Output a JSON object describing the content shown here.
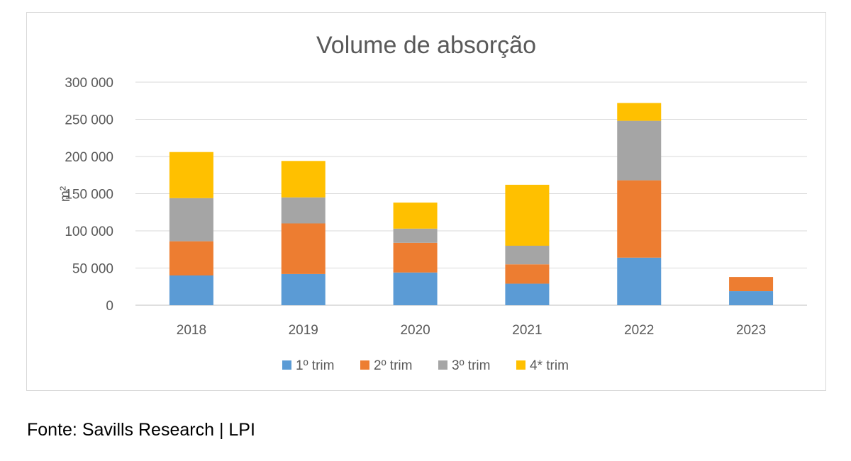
{
  "chart_data": {
    "type": "bar",
    "stacked": true,
    "title": "Volume de absorção",
    "ylabel": "m²",
    "xlabel": "",
    "categories": [
      "2018",
      "2019",
      "2020",
      "2021",
      "2022",
      "2023"
    ],
    "ylim": [
      0,
      300000
    ],
    "yticks": [
      0,
      50000,
      100000,
      150000,
      200000,
      250000,
      300000
    ],
    "ytick_labels": [
      "0",
      "50 000",
      "100 000",
      "150 000",
      "200 000",
      "250 000",
      "300 000"
    ],
    "grid": true,
    "legend_position": "bottom",
    "series": [
      {
        "name": "1º trim",
        "color": "#5b9bd5",
        "values": [
          40000,
          42000,
          44000,
          29000,
          64000,
          19000
        ]
      },
      {
        "name": "2º trim",
        "color": "#ed7d31",
        "values": [
          46000,
          68000,
          40000,
          26000,
          104000,
          19000
        ]
      },
      {
        "name": "3º trim",
        "color": "#a5a5a5",
        "values": [
          58000,
          35000,
          19000,
          25000,
          80000,
          0
        ]
      },
      {
        "name": "4* trim",
        "color": "#ffc000",
        "values": [
          62000,
          49000,
          35000,
          82000,
          24000,
          0
        ]
      }
    ]
  },
  "source": "Fonte: Savills Research | LPI"
}
